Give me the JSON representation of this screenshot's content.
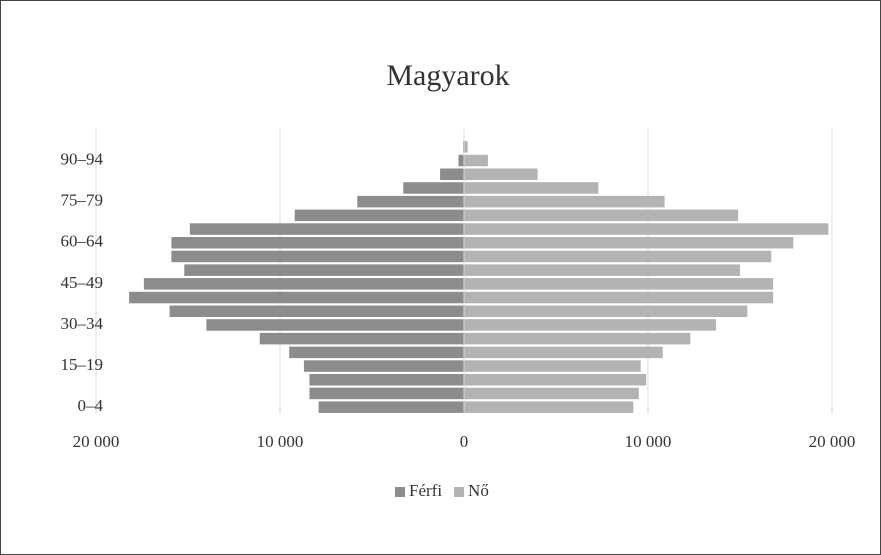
{
  "chart_data": {
    "type": "pyramid",
    "title": "Magyarok",
    "categories": [
      "0–4",
      null,
      null,
      "15–19",
      null,
      null,
      "30–34",
      null,
      null,
      "45–49",
      null,
      null,
      "60–64",
      null,
      null,
      "75–79",
      null,
      null,
      "90–94",
      null
    ],
    "series": [
      {
        "name": "Férfi",
        "color": "#8c8c8c",
        "values": [
          -7900,
          -8400,
          -8400,
          -8700,
          -9500,
          -11100,
          -14000,
          -16000,
          -18200,
          -17400,
          -15200,
          -15900,
          -15900,
          -14900,
          -9200,
          -5800,
          -3300,
          -1300,
          -300,
          -50
        ]
      },
      {
        "name": "Nő",
        "color": "#b3b3b3",
        "values": [
          9200,
          9500,
          9900,
          9600,
          10800,
          12300,
          13700,
          15400,
          16800,
          16800,
          15000,
          16700,
          17900,
          19800,
          14900,
          10900,
          7300,
          4000,
          1300,
          200
        ]
      }
    ],
    "xlim": [
      -20000,
      20000
    ],
    "xticks": [
      {
        "value": -20000,
        "label": "20 000"
      },
      {
        "value": -10000,
        "label": "10 000"
      },
      0,
      {
        "value": 10000,
        "label": "10 000"
      },
      {
        "value": 20000,
        "label": "20 000"
      }
    ],
    "grid": true,
    "legend": "bottom"
  }
}
